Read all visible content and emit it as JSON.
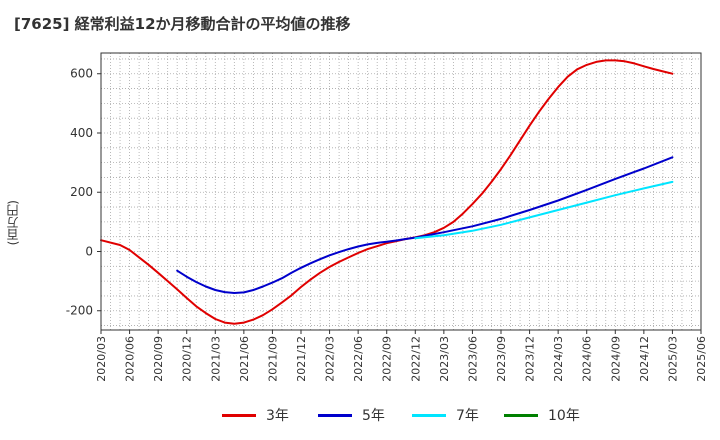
{
  "title": "[7625]  経常利益12か月移動合計の平均値の推移",
  "chart_data": {
    "type": "line",
    "title": "[7625]  経常利益12か月移動合計の平均値の推移",
    "ylabel": "(百万円)",
    "xlabel": "",
    "ylim": [
      -265,
      670
    ],
    "yticks": [
      600,
      400,
      200,
      0,
      -200
    ],
    "xticks": [
      "2020/03",
      "2020/06",
      "2020/09",
      "2020/12",
      "2021/03",
      "2021/06",
      "2021/09",
      "2021/12",
      "2022/03",
      "2022/06",
      "2022/09",
      "2022/12",
      "2023/03",
      "2023/06",
      "2023/09",
      "2023/12",
      "2024/03",
      "2024/06",
      "2024/09",
      "2024/12",
      "2025/03",
      "2025/06"
    ],
    "grid": true,
    "legend_position": "bottom",
    "series": [
      {
        "name": "3年",
        "color": "#e00000",
        "x": [
          "2020/03",
          "2020/05",
          "2020/06",
          "2020/07",
          "2020/08",
          "2020/09",
          "2020/10",
          "2020/11",
          "2020/12",
          "2021/01",
          "2021/02",
          "2021/03",
          "2021/04",
          "2021/05",
          "2021/06",
          "2021/07",
          "2021/08",
          "2021/09",
          "2021/10",
          "2021/11",
          "2021/12",
          "2022/01",
          "2022/02",
          "2022/03",
          "2022/04",
          "2022/05",
          "2022/06",
          "2022/07",
          "2022/08",
          "2022/09",
          "2022/10",
          "2022/11",
          "2022/12",
          "2023/01",
          "2023/02",
          "2023/03",
          "2023/04",
          "2023/05",
          "2023/06",
          "2023/07",
          "2023/08",
          "2023/09",
          "2023/10",
          "2023/11",
          "2023/12",
          "2024/01",
          "2024/02",
          "2024/03",
          "2024/04",
          "2024/05",
          "2024/06",
          "2024/07",
          "2024/08",
          "2024/09",
          "2024/10",
          "2024/11",
          "2024/12",
          "2025/01",
          "2025/02",
          "2025/03"
        ],
        "values": [
          38,
          22,
          5,
          -20,
          -45,
          -72,
          -100,
          -128,
          -157,
          -185,
          -208,
          -228,
          -240,
          -244,
          -240,
          -230,
          -215,
          -195,
          -172,
          -148,
          -120,
          -95,
          -72,
          -52,
          -35,
          -20,
          -5,
          8,
          18,
          28,
          35,
          42,
          48,
          55,
          65,
          80,
          100,
          128,
          160,
          195,
          235,
          278,
          325,
          375,
          425,
          472,
          515,
          555,
          590,
          615,
          630,
          640,
          645,
          645,
          642,
          635,
          625,
          616,
          608,
          600
        ]
      },
      {
        "name": "5年",
        "color": "#0000cc",
        "x": [
          "2020/11",
          "2020/12",
          "2021/01",
          "2021/02",
          "2021/03",
          "2021/04",
          "2021/05",
          "2021/06",
          "2021/07",
          "2021/08",
          "2021/09",
          "2021/10",
          "2021/11",
          "2021/12",
          "2022/01",
          "2022/02",
          "2022/03",
          "2022/04",
          "2022/05",
          "2022/06",
          "2022/07",
          "2022/08",
          "2022/09",
          "2022/10",
          "2022/11",
          "2022/12",
          "2023/03",
          "2023/06",
          "2023/09",
          "2023/12",
          "2024/03",
          "2024/06",
          "2024/09",
          "2024/12",
          "2025/03"
        ],
        "values": [
          -65,
          -85,
          -103,
          -118,
          -130,
          -137,
          -140,
          -138,
          -130,
          -118,
          -105,
          -90,
          -72,
          -55,
          -40,
          -26,
          -13,
          -2,
          8,
          17,
          24,
          29,
          33,
          37,
          42,
          47,
          65,
          85,
          110,
          140,
          172,
          208,
          245,
          280,
          318
        ]
      },
      {
        "name": "7年",
        "color": "#00e5ff",
        "x": [
          "2022/12",
          "2023/03",
          "2023/06",
          "2023/09",
          "2023/12",
          "2024/03",
          "2024/06",
          "2024/09",
          "2024/12",
          "2025/03"
        ],
        "values": [
          45,
          55,
          70,
          90,
          115,
          140,
          165,
          190,
          213,
          235
        ]
      },
      {
        "name": "10年",
        "color": "#008000",
        "x": [],
        "values": []
      }
    ]
  }
}
